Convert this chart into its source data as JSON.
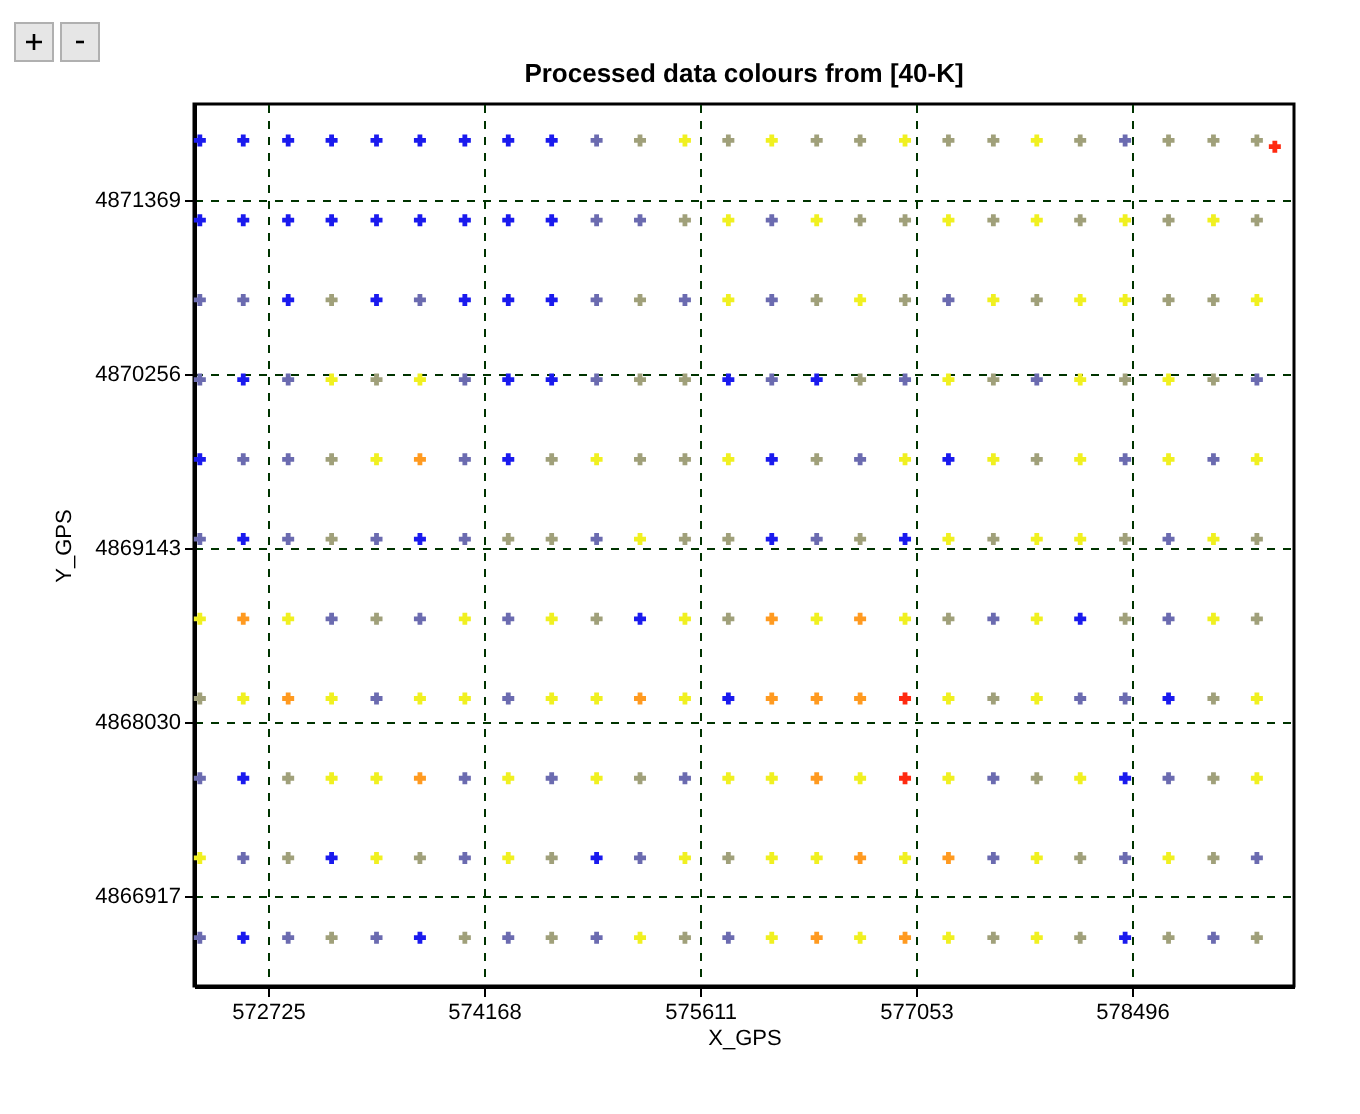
{
  "chart_data": {
    "type": "scatter",
    "title": "Processed data  colours from [40-K]",
    "xlabel": "X_GPS",
    "ylabel": "Y_GPS",
    "xlim": [
      572231,
      579578
    ],
    "ylim": [
      4866341,
      4871983
    ],
    "xticks": [
      572725,
      574168,
      575611,
      577053,
      578496
    ],
    "yticks": [
      4866917,
      4868030,
      4869143,
      4870256,
      4871369
    ],
    "grid": true,
    "marker": "cross",
    "series": [
      {
        "x": [
          572270,
          572560,
          572860,
          573150,
          573450,
          573740,
          574040,
          574330,
          574620,
          574920,
          575210,
          575510,
          575800,
          576090,
          576390,
          576680,
          576980,
          577270,
          577570,
          577860,
          578150,
          578450,
          578740,
          579040,
          579330
        ],
        "values": [
          4871750,
          4871750,
          4871750,
          4871750,
          4871750,
          4871750,
          4871750,
          4871750,
          4871750,
          4871750,
          4871750,
          4871750,
          4871750,
          4871750,
          4871750,
          4871750,
          4871750,
          4871750,
          4871750,
          4871750,
          4871750,
          4871750,
          4871750,
          4871750,
          4871750
        ],
        "colors": [
          "#1a1aee",
          "#1a1aee",
          "#1a1aee",
          "#1a1aee",
          "#1a1aee",
          "#1a1aee",
          "#1a1aee",
          "#1a1aee",
          "#1a1aee",
          "#6b6bb0",
          "#a0a07a",
          "#f0f020",
          "#a0a07a",
          "#f0f020",
          "#a0a07a",
          "#a0a07a",
          "#f0f020",
          "#a0a07a",
          "#a0a07a",
          "#f0f020",
          "#a0a07a",
          "#6b6bb0",
          "#a0a07a",
          "#a0a07a",
          "#a0a07a"
        ]
      },
      {
        "x": [
          572270,
          572560,
          572860,
          573150,
          573450,
          573740,
          574040,
          574330,
          574620,
          574920,
          575210,
          575510,
          575800,
          576090,
          576390,
          576680,
          576980,
          577270,
          577570,
          577860,
          578150,
          578450,
          578740,
          579040,
          579330
        ],
        "values": [
          4871240,
          4871240,
          4871240,
          4871240,
          4871240,
          4871240,
          4871240,
          4871240,
          4871240,
          4871240,
          4871240,
          4871240,
          4871240,
          4871240,
          4871240,
          4871240,
          4871240,
          4871240,
          4871240,
          4871240,
          4871240,
          4871240,
          4871240,
          4871240,
          4871240
        ],
        "colors": [
          "#1a1aee",
          "#1a1aee",
          "#1a1aee",
          "#1a1aee",
          "#1a1aee",
          "#1a1aee",
          "#1a1aee",
          "#1a1aee",
          "#1a1aee",
          "#6b6bb0",
          "#6b6bb0",
          "#a0a07a",
          "#f0f020",
          "#6b6bb0",
          "#f0f020",
          "#a0a07a",
          "#a0a07a",
          "#f0f020",
          "#a0a07a",
          "#f0f020",
          "#a0a07a",
          "#f0f020",
          "#a0a07a",
          "#f0f020",
          "#a0a07a"
        ]
      },
      {
        "x": [
          572270,
          572560,
          572860,
          573150,
          573450,
          573740,
          574040,
          574330,
          574620,
          574920,
          575210,
          575510,
          575800,
          576090,
          576390,
          576680,
          576980,
          577270,
          577570,
          577860,
          578150,
          578450,
          578740,
          579040,
          579330
        ],
        "values": [
          4870730,
          4870730,
          4870730,
          4870730,
          4870730,
          4870730,
          4870730,
          4870730,
          4870730,
          4870730,
          4870730,
          4870730,
          4870730,
          4870730,
          4870730,
          4870730,
          4870730,
          4870730,
          4870730,
          4870730,
          4870730,
          4870730,
          4870730,
          4870730,
          4870730
        ],
        "colors": [
          "#6b6bb0",
          "#6b6bb0",
          "#1a1aee",
          "#a0a07a",
          "#1a1aee",
          "#6b6bb0",
          "#1a1aee",
          "#1a1aee",
          "#1a1aee",
          "#6b6bb0",
          "#a0a07a",
          "#6b6bb0",
          "#f0f020",
          "#6b6bb0",
          "#a0a07a",
          "#f0f020",
          "#a0a07a",
          "#6b6bb0",
          "#f0f020",
          "#a0a07a",
          "#f0f020",
          "#f0f020",
          "#a0a07a",
          "#a0a07a",
          "#f0f020"
        ]
      },
      {
        "x": [
          572270,
          572560,
          572860,
          573150,
          573450,
          573740,
          574040,
          574330,
          574620,
          574920,
          575210,
          575510,
          575800,
          576090,
          576390,
          576680,
          576980,
          577270,
          577570,
          577860,
          578150,
          578450,
          578740,
          579040,
          579330
        ],
        "values": [
          4870220,
          4870220,
          4870220,
          4870220,
          4870220,
          4870220,
          4870220,
          4870220,
          4870220,
          4870220,
          4870220,
          4870220,
          4870220,
          4870220,
          4870220,
          4870220,
          4870220,
          4870220,
          4870220,
          4870220,
          4870220,
          4870220,
          4870220,
          4870220,
          4870220
        ],
        "colors": [
          "#6b6bb0",
          "#1a1aee",
          "#6b6bb0",
          "#f0f020",
          "#a0a07a",
          "#f0f020",
          "#6b6bb0",
          "#1a1aee",
          "#1a1aee",
          "#6b6bb0",
          "#a0a07a",
          "#a0a07a",
          "#1a1aee",
          "#6b6bb0",
          "#1a1aee",
          "#a0a07a",
          "#6b6bb0",
          "#f0f020",
          "#a0a07a",
          "#6b6bb0",
          "#f0f020",
          "#a0a07a",
          "#f0f020",
          "#a0a07a",
          "#6b6bb0"
        ]
      },
      {
        "x": [
          572270,
          572560,
          572860,
          573150,
          573450,
          573740,
          574040,
          574330,
          574620,
          574920,
          575210,
          575510,
          575800,
          576090,
          576390,
          576680,
          576980,
          577270,
          577570,
          577860,
          578150,
          578450,
          578740,
          579040,
          579330
        ],
        "values": [
          4869710,
          4869710,
          4869710,
          4869710,
          4869710,
          4869710,
          4869710,
          4869710,
          4869710,
          4869710,
          4869710,
          4869710,
          4869710,
          4869710,
          4869710,
          4869710,
          4869710,
          4869710,
          4869710,
          4869710,
          4869710,
          4869710,
          4869710,
          4869710,
          4869710
        ],
        "colors": [
          "#1a1aee",
          "#6b6bb0",
          "#6b6bb0",
          "#a0a07a",
          "#f0f020",
          "#ff9a20",
          "#6b6bb0",
          "#1a1aee",
          "#a0a07a",
          "#f0f020",
          "#a0a07a",
          "#a0a07a",
          "#f0f020",
          "#1a1aee",
          "#a0a07a",
          "#6b6bb0",
          "#f0f020",
          "#1a1aee",
          "#f0f020",
          "#a0a07a",
          "#f0f020",
          "#6b6bb0",
          "#f0f020",
          "#6b6bb0",
          "#f0f020"
        ]
      },
      {
        "x": [
          572270,
          572560,
          572860,
          573150,
          573450,
          573740,
          574040,
          574330,
          574620,
          574920,
          575210,
          575510,
          575800,
          576090,
          576390,
          576680,
          576980,
          577270,
          577570,
          577860,
          578150,
          578450,
          578740,
          579040,
          579330
        ],
        "values": [
          4869200,
          4869200,
          4869200,
          4869200,
          4869200,
          4869200,
          4869200,
          4869200,
          4869200,
          4869200,
          4869200,
          4869200,
          4869200,
          4869200,
          4869200,
          4869200,
          4869200,
          4869200,
          4869200,
          4869200,
          4869200,
          4869200,
          4869200,
          4869200,
          4869200
        ],
        "colors": [
          "#6b6bb0",
          "#1a1aee",
          "#6b6bb0",
          "#a0a07a",
          "#6b6bb0",
          "#1a1aee",
          "#6b6bb0",
          "#a0a07a",
          "#a0a07a",
          "#6b6bb0",
          "#f0f020",
          "#a0a07a",
          "#a0a07a",
          "#1a1aee",
          "#6b6bb0",
          "#a0a07a",
          "#1a1aee",
          "#f0f020",
          "#a0a07a",
          "#f0f020",
          "#f0f020",
          "#a0a07a",
          "#6b6bb0",
          "#f0f020",
          "#a0a07a"
        ]
      },
      {
        "x": [
          572270,
          572560,
          572860,
          573150,
          573450,
          573740,
          574040,
          574330,
          574620,
          574920,
          575210,
          575510,
          575800,
          576090,
          576390,
          576680,
          576980,
          577270,
          577570,
          577860,
          578150,
          578450,
          578740,
          579040,
          579330
        ],
        "values": [
          4868690,
          4868690,
          4868690,
          4868690,
          4868690,
          4868690,
          4868690,
          4868690,
          4868690,
          4868690,
          4868690,
          4868690,
          4868690,
          4868690,
          4868690,
          4868690,
          4868690,
          4868690,
          4868690,
          4868690,
          4868690,
          4868690,
          4868690,
          4868690,
          4868690
        ],
        "colors": [
          "#f0f020",
          "#ff9a20",
          "#f0f020",
          "#6b6bb0",
          "#a0a07a",
          "#6b6bb0",
          "#f0f020",
          "#6b6bb0",
          "#f0f020",
          "#a0a07a",
          "#1a1aee",
          "#f0f020",
          "#a0a07a",
          "#ff9a20",
          "#f0f020",
          "#ff9a20",
          "#f0f020",
          "#a0a07a",
          "#6b6bb0",
          "#f0f020",
          "#1a1aee",
          "#a0a07a",
          "#6b6bb0",
          "#f0f020",
          "#a0a07a"
        ]
      },
      {
        "x": [
          572270,
          572560,
          572860,
          573150,
          573450,
          573740,
          574040,
          574330,
          574620,
          574920,
          575210,
          575510,
          575800,
          576090,
          576390,
          576680,
          576980,
          577270,
          577570,
          577860,
          578150,
          578450,
          578740,
          579040,
          579330
        ],
        "values": [
          4868180,
          4868180,
          4868180,
          4868180,
          4868180,
          4868180,
          4868180,
          4868180,
          4868180,
          4868180,
          4868180,
          4868180,
          4868180,
          4868180,
          4868180,
          4868180,
          4868180,
          4868180,
          4868180,
          4868180,
          4868180,
          4868180,
          4868180,
          4868180,
          4868180
        ],
        "colors": [
          "#a0a07a",
          "#f0f020",
          "#ff9a20",
          "#f0f020",
          "#6b6bb0",
          "#f0f020",
          "#f0f020",
          "#6b6bb0",
          "#f0f020",
          "#f0f020",
          "#ff9a20",
          "#f0f020",
          "#1a1aee",
          "#ff9a20",
          "#ff9a20",
          "#ff9a20",
          "#ff2a10",
          "#f0f020",
          "#a0a07a",
          "#f0f020",
          "#6b6bb0",
          "#6b6bb0",
          "#1a1aee",
          "#a0a07a",
          "#f0f020"
        ]
      },
      {
        "x": [
          572270,
          572560,
          572860,
          573150,
          573450,
          573740,
          574040,
          574330,
          574620,
          574920,
          575210,
          575510,
          575800,
          576090,
          576390,
          576680,
          576980,
          577270,
          577570,
          577860,
          578150,
          578450,
          578740,
          579040,
          579330
        ],
        "values": [
          4867670,
          4867670,
          4867670,
          4867670,
          4867670,
          4867670,
          4867670,
          4867670,
          4867670,
          4867670,
          4867670,
          4867670,
          4867670,
          4867670,
          4867670,
          4867670,
          4867670,
          4867670,
          4867670,
          4867670,
          4867670,
          4867670,
          4867670,
          4867670,
          4867670
        ],
        "colors": [
          "#6b6bb0",
          "#1a1aee",
          "#a0a07a",
          "#f0f020",
          "#f0f020",
          "#ff9a20",
          "#6b6bb0",
          "#f0f020",
          "#6b6bb0",
          "#f0f020",
          "#a0a07a",
          "#6b6bb0",
          "#f0f020",
          "#f0f020",
          "#ff9a20",
          "#f0f020",
          "#ff2a10",
          "#f0f020",
          "#6b6bb0",
          "#a0a07a",
          "#f0f020",
          "#1a1aee",
          "#6b6bb0",
          "#a0a07a",
          "#f0f020"
        ]
      },
      {
        "x": [
          572270,
          572560,
          572860,
          573150,
          573450,
          573740,
          574040,
          574330,
          574620,
          574920,
          575210,
          575510,
          575800,
          576090,
          576390,
          576680,
          576980,
          577270,
          577570,
          577860,
          578150,
          578450,
          578740,
          579040,
          579330
        ],
        "values": [
          4867160,
          4867160,
          4867160,
          4867160,
          4867160,
          4867160,
          4867160,
          4867160,
          4867160,
          4867160,
          4867160,
          4867160,
          4867160,
          4867160,
          4867160,
          4867160,
          4867160,
          4867160,
          4867160,
          4867160,
          4867160,
          4867160,
          4867160,
          4867160,
          4867160
        ],
        "colors": [
          "#f0f020",
          "#6b6bb0",
          "#a0a07a",
          "#1a1aee",
          "#f0f020",
          "#a0a07a",
          "#6b6bb0",
          "#f0f020",
          "#a0a07a",
          "#1a1aee",
          "#6b6bb0",
          "#f0f020",
          "#a0a07a",
          "#f0f020",
          "#f0f020",
          "#ff9a20",
          "#f0f020",
          "#ff9a20",
          "#6b6bb0",
          "#f0f020",
          "#a0a07a",
          "#6b6bb0",
          "#f0f020",
          "#a0a07a",
          "#6b6bb0"
        ]
      },
      {
        "x": [
          572270,
          572560,
          572860,
          573150,
          573450,
          573740,
          574040,
          574330,
          574620,
          574920,
          575210,
          575510,
          575800,
          576090,
          576390,
          576680,
          576980,
          577270,
          577570,
          577860,
          578150,
          578450,
          578740,
          579040,
          579330
        ],
        "values": [
          4866650,
          4866650,
          4866650,
          4866650,
          4866650,
          4866650,
          4866650,
          4866650,
          4866650,
          4866650,
          4866650,
          4866650,
          4866650,
          4866650,
          4866650,
          4866650,
          4866650,
          4866650,
          4866650,
          4866650,
          4866650,
          4866650,
          4866650,
          4866650,
          4866650
        ],
        "colors": [
          "#6b6bb0",
          "#1a1aee",
          "#6b6bb0",
          "#a0a07a",
          "#6b6bb0",
          "#1a1aee",
          "#a0a07a",
          "#6b6bb0",
          "#a0a07a",
          "#6b6bb0",
          "#f0f020",
          "#a0a07a",
          "#6b6bb0",
          "#f0f020",
          "#ff9a20",
          "#f0f020",
          "#ff9a20",
          "#f0f020",
          "#a0a07a",
          "#f0f020",
          "#a0a07a",
          "#1a1aee",
          "#a0a07a",
          "#6b6bb0",
          "#a0a07a"
        ]
      },
      {
        "x": [
          579450
        ],
        "values": [
          4871710
        ],
        "colors": [
          "#ff2a10"
        ]
      }
    ]
  }
}
